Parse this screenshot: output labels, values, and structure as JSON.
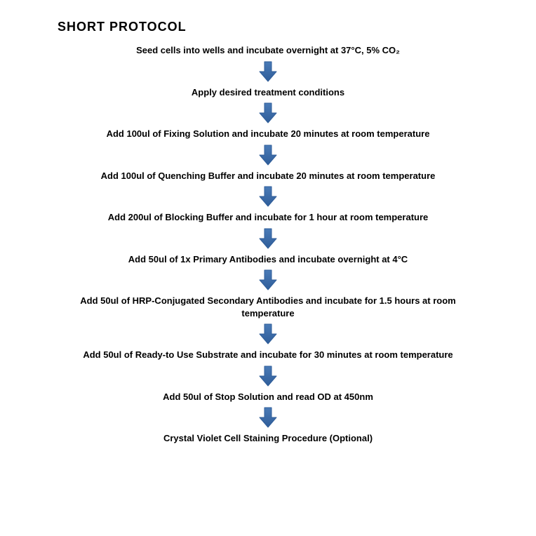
{
  "title": "SHORT PROTOCOL",
  "arrow": {
    "fill": "#4a7bb7",
    "stroke": "#2f5d99",
    "stroke_width": 1
  },
  "layout": {
    "title_fontsize": 18,
    "step_fontsize": 13,
    "step_fontweight": 700,
    "text_color": "#000000",
    "background_color": "#ffffff",
    "title_margin_left": 82,
    "arrow_width": 30,
    "arrow_height": 32,
    "step_max_width": 560
  },
  "flow": {
    "type": "flowchart",
    "steps": [
      "Seed cells into wells and incubate overnight at 37°C, 5% CO₂",
      "Apply desired treatment conditions",
      "Add 100ul of Fixing Solution and incubate 20 minutes at room temperature",
      "Add 100ul of Quenching Buffer and incubate 20 minutes at room temperature",
      "Add 200ul of Blocking Buffer and incubate for 1 hour at room temperature",
      "Add 50ul of 1x Primary Antibodies and incubate overnight at 4°C",
      "Add 50ul of HRP-Conjugated Secondary Antibodies and incubate for 1.5 hours at room temperature",
      "Add 50ul of Ready-to Use Substrate and incubate for 30 minutes at room temperature",
      "Add 50ul of Stop Solution and read OD at 450nm",
      "Crystal Violet Cell Staining Procedure (Optional)"
    ]
  }
}
